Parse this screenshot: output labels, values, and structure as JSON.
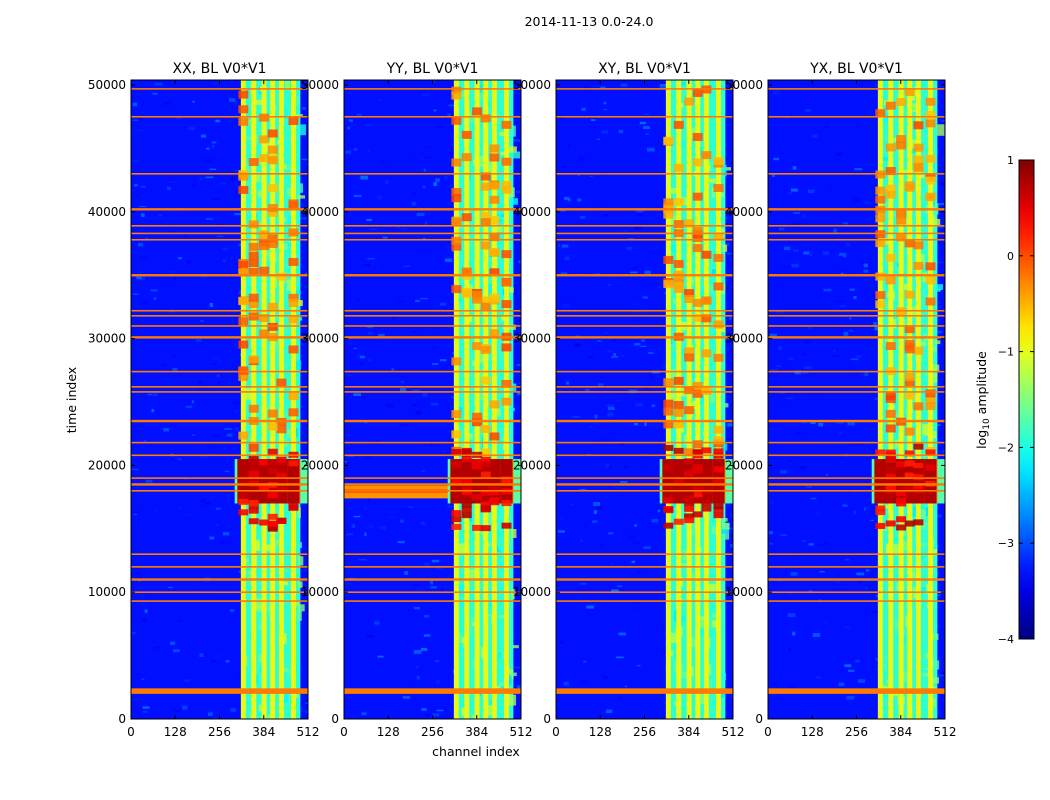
{
  "figure_title": "2014-11-13 0.0-24.0",
  "chart_data": {
    "type": "heatmap",
    "suptitle": "2014-11-13 0.0-24.0",
    "xlabel": "channel index",
    "ylabel": "time index",
    "xlim": [
      0,
      512
    ],
    "ylim": [
      0,
      50400
    ],
    "x_ticks": [
      0,
      128,
      256,
      384,
      512
    ],
    "x_tick_labels": [
      "0",
      "128",
      "256",
      "384",
      "512"
    ],
    "y_ticks": [
      0,
      10000,
      20000,
      30000,
      40000,
      50000
    ],
    "y_tick_labels": [
      "0",
      "10000",
      "20000",
      "30000",
      "40000",
      "50000"
    ],
    "panels": [
      {
        "title": "XX, BL V0*V1",
        "strong_lower_band": false
      },
      {
        "title": "YY, BL V0*V1",
        "strong_lower_band": true
      },
      {
        "title": "XY, BL V0*V1",
        "strong_lower_band": false
      },
      {
        "title": "YX, BL V0*V1",
        "strong_lower_band": false
      }
    ],
    "colorbar": {
      "label": "log10 amplitude",
      "label_main": "log",
      "label_sub": "10",
      "label_rest": " amplitude",
      "vmin": -4,
      "vmax": 1,
      "ticks": [
        1,
        0,
        -1,
        -2,
        -3,
        -4
      ],
      "tick_labels": [
        "1",
        "0",
        "−1",
        "−2",
        "−3",
        "−4"
      ],
      "colormap": "jet"
    },
    "band_channels": [
      325,
      355,
      385,
      410,
      435,
      470
    ],
    "hot_rfi_time_range": [
      17000,
      20500
    ],
    "rfi_rows": [
      2100,
      2300,
      9300,
      10000,
      11000,
      12000,
      13000,
      18000,
      18500,
      19000,
      20800,
      21800,
      23500,
      25800,
      26200,
      27400,
      30100,
      31000,
      31800,
      32200,
      35000,
      37800,
      38300,
      38900,
      40200,
      43000,
      47500,
      49700
    ],
    "background_value": -3.3,
    "colors": {
      "background_blue": "#0a3cf0",
      "rfi_orange": "#ff7a00",
      "hot_red": "#b00000"
    }
  }
}
